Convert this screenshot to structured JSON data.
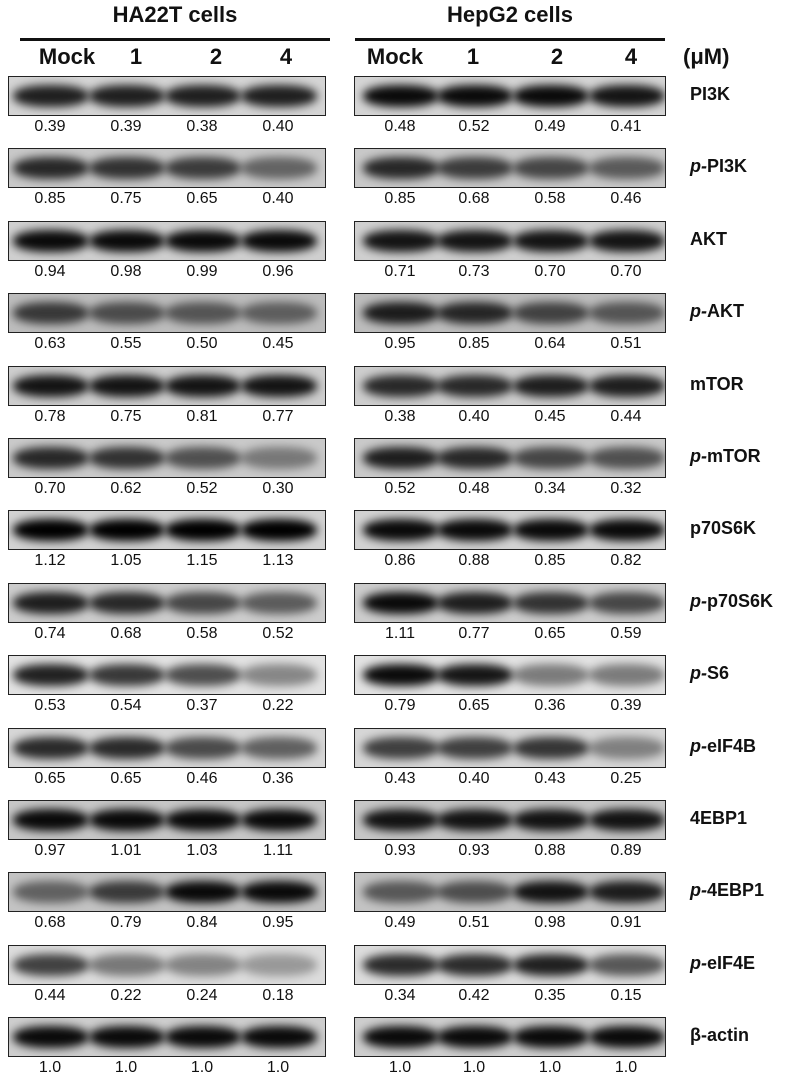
{
  "groups": [
    {
      "title": "HA22T cells",
      "lanes": [
        "Mock",
        "1",
        "2",
        "4"
      ]
    },
    {
      "title": "HepG2 cells",
      "lanes": [
        "Mock",
        "1",
        "2",
        "4"
      ]
    }
  ],
  "unit": "(μM)",
  "rows": [
    {
      "prefix": "",
      "name": "PI3K",
      "ha22t": [
        "0.39",
        "0.39",
        "0.38",
        "0.40"
      ],
      "hepg2": [
        "0.48",
        "0.52",
        "0.49",
        "0.41"
      ]
    },
    {
      "prefix": "p-",
      "name": "PI3K",
      "ha22t": [
        "0.85",
        "0.75",
        "0.65",
        "0.40"
      ],
      "hepg2": [
        "0.85",
        "0.68",
        "0.58",
        "0.46"
      ]
    },
    {
      "prefix": "",
      "name": "AKT",
      "ha22t": [
        "0.94",
        "0.98",
        "0.99",
        "0.96"
      ],
      "hepg2": [
        "0.71",
        "0.73",
        "0.70",
        "0.70"
      ]
    },
    {
      "prefix": "p-",
      "name": "AKT",
      "ha22t": [
        "0.63",
        "0.55",
        "0.50",
        "0.45"
      ],
      "hepg2": [
        "0.95",
        "0.85",
        "0.64",
        "0.51"
      ]
    },
    {
      "prefix": "",
      "name": "mTOR",
      "ha22t": [
        "0.78",
        "0.75",
        "0.81",
        "0.77"
      ],
      "hepg2": [
        "0.38",
        "0.40",
        "0.45",
        "0.44"
      ]
    },
    {
      "prefix": "p-",
      "name": "mTOR",
      "ha22t": [
        "0.70",
        "0.62",
        "0.52",
        "0.30"
      ],
      "hepg2": [
        "0.52",
        "0.48",
        "0.34",
        "0.32"
      ]
    },
    {
      "prefix": "",
      "name": "p70S6K",
      "ha22t": [
        "1.12",
        "1.05",
        "1.15",
        "1.13"
      ],
      "hepg2": [
        "0.86",
        "0.88",
        "0.85",
        "0.82"
      ]
    },
    {
      "prefix": "p-",
      "name": "p70S6K",
      "ha22t": [
        "0.74",
        "0.68",
        "0.58",
        "0.52"
      ],
      "hepg2": [
        "1.11",
        "0.77",
        "0.65",
        "0.59"
      ]
    },
    {
      "prefix": "p-",
      "name": "S6",
      "ha22t": [
        "0.53",
        "0.54",
        "0.37",
        "0.22"
      ],
      "hepg2": [
        "0.79",
        "0.65",
        "0.36",
        "0.39"
      ]
    },
    {
      "prefix": "p-",
      "name": "eIF4B",
      "ha22t": [
        "0.65",
        "0.65",
        "0.46",
        "0.36"
      ],
      "hepg2": [
        "0.43",
        "0.40",
        "0.43",
        "0.25"
      ]
    },
    {
      "prefix": "",
      "name": "4EBP1",
      "ha22t": [
        "0.97",
        "1.01",
        "1.03",
        "1.11"
      ],
      "hepg2": [
        "0.93",
        "0.93",
        "0.88",
        "0.89"
      ]
    },
    {
      "prefix": "p-",
      "name": "4EBP1",
      "ha22t": [
        "0.68",
        "0.79",
        "0.84",
        "0.95"
      ],
      "hepg2": [
        "0.49",
        "0.51",
        "0.98",
        "0.91"
      ]
    },
    {
      "prefix": "p-",
      "name": "eIF4E",
      "ha22t": [
        "0.44",
        "0.22",
        "0.24",
        "0.18"
      ],
      "hepg2": [
        "0.34",
        "0.42",
        "0.35",
        "0.15"
      ]
    },
    {
      "prefix": "",
      "name": "β-actin",
      "ha22t": [
        "1.0",
        "1.0",
        "1.0",
        "1.0"
      ],
      "hepg2": [
        "1.0",
        "1.0",
        "1.0",
        "1.0"
      ]
    }
  ]
}
